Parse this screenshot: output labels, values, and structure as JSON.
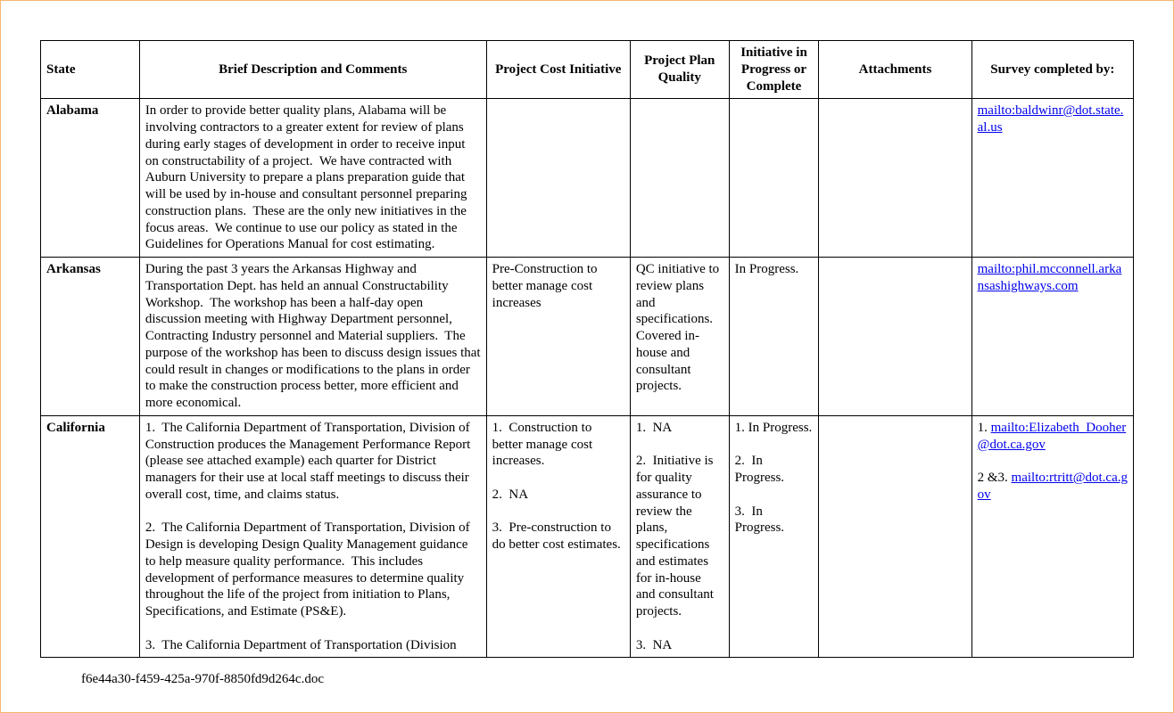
{
  "table": {
    "headers": {
      "state": "State",
      "description": "Brief Description and Comments",
      "cost": "Project Cost Initiative",
      "quality": "Project Plan Quality",
      "initiative": "Initiative in Progress or Complete",
      "attachments": "Attachments",
      "survey": "Survey completed by:"
    },
    "rows": [
      {
        "state": "Alabama",
        "description": "In order to provide better quality plans, Alabama will be involving contractors to a greater extent for review of plans during early stages of development in order to receive input on constructability of a project.  We have contracted with Auburn University to prepare a plans preparation guide that will be used by in-house and consultant personnel preparing construction plans.  These are the only new initiatives in the focus areas.  We continue to use our policy as stated in the Guidelines for Operations Manual for cost estimating.",
        "cost": "",
        "quality": "",
        "initiative": "",
        "attachments": "",
        "survey_parts": [
          {
            "type": "link",
            "text": "mailto:baldwinr@dot.state.al.us"
          }
        ]
      },
      {
        "state": "Arkansas",
        "description": "During the past 3 years the Arkansas Highway and Transportation Dept. has held an annual Constructability Workshop.  The workshop has been a half-day open discussion meeting with Highway Department personnel, Contracting Industry personnel and Material suppliers.  The purpose of the workshop has been to discuss design issues that could result in changes or modifications to the plans in order to make the construction process better, more efficient and more economical.",
        "cost": "Pre-Construction to better manage cost increases",
        "quality": "QC initiative to review plans and specifications.  Covered in-house and consultant projects.",
        "initiative": "In Progress.",
        "attachments": "",
        "survey_parts": [
          {
            "type": "link",
            "text": "mailto:phil.mcconnell.arkansashighways.com"
          }
        ]
      },
      {
        "state": "California",
        "description": "1.  The California Department of Transportation, Division of Construction produces the Management Performance Report (please see attached example) each quarter for District managers for their use at local staff meetings to discuss their overall cost, time, and claims status.\n\n2.  The California Department of Transportation, Division of Design is developing Design Quality Management guidance to help measure quality performance.  This includes development of performance measures to determine quality throughout the life of the project from initiation to Plans, Specifications, and Estimate (PS&E).\n\n3.  The California Department of Transportation (Division",
        "cost": "1.  Construction to better manage cost increases.\n\n2.  NA\n\n3.  Pre-construction to do better cost estimates.",
        "quality": "1.  NA\n\n2.  Initiative is for quality assurance to review the plans, specifications and estimates for in-house and consultant projects.\n\n3.  NA",
        "initiative": "1. In Progress.\n\n2.  In Progress.\n\n3.  In Progress.",
        "attachments": "",
        "survey_parts": [
          {
            "type": "text",
            "text": "1. "
          },
          {
            "type": "link",
            "text": "mailto:Elizabeth_Dooher@dot.ca.gov"
          },
          {
            "type": "break"
          },
          {
            "type": "break"
          },
          {
            "type": "text",
            "text": "2 &3. "
          },
          {
            "type": "link",
            "text": "mailto:rtritt@dot.ca.gov"
          }
        ]
      }
    ]
  },
  "footer": "f6e44a30-f459-425a-970f-8850fd9d264c.doc"
}
